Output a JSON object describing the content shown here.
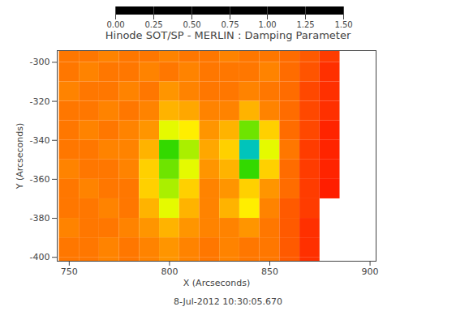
{
  "chart_data": {
    "type": "heatmap",
    "title": "Hinode SOT/SP - MERLIN : Damping Parameter",
    "x_label": "X (Arcseconds)",
    "y_label": "Y (Arcseconds)",
    "annotations": [
      "8-Jul-2012 10:30:05.670"
    ],
    "xlim": [
      744,
      903
    ],
    "ylim": [
      -402,
      -294
    ],
    "xticks": [
      750,
      800,
      850,
      900
    ],
    "yticks": [
      -300,
      -320,
      -340,
      -360,
      -380,
      -400
    ],
    "x_edges": [
      745,
      755,
      765,
      775,
      785,
      795,
      805,
      815,
      825,
      835,
      845,
      855,
      865,
      875,
      885,
      895,
      905
    ],
    "y_edges": [
      -290,
      -300,
      -310,
      -320,
      -330,
      -340,
      -350,
      -360,
      -370,
      -380,
      -390,
      -400,
      -410
    ],
    "values": [
      [
        0.2,
        0.2,
        0.22,
        0.2,
        0.2,
        0.22,
        0.2,
        0.2,
        0.22,
        0.2,
        0.2,
        0.18,
        0.15,
        0.1,
        null,
        null
      ],
      [
        0.2,
        0.22,
        0.2,
        0.2,
        0.22,
        0.2,
        0.22,
        0.2,
        0.2,
        0.2,
        0.22,
        0.18,
        0.14,
        0.08,
        null,
        null
      ],
      [
        0.22,
        0.2,
        0.2,
        0.22,
        0.2,
        0.25,
        0.22,
        0.2,
        0.2,
        0.22,
        0.2,
        0.18,
        0.12,
        0.08,
        null,
        null
      ],
      [
        0.2,
        0.2,
        0.22,
        0.2,
        0.22,
        0.3,
        0.28,
        0.22,
        0.22,
        0.3,
        0.22,
        0.18,
        0.12,
        0.08,
        null,
        null
      ],
      [
        0.2,
        0.22,
        0.2,
        0.22,
        0.25,
        0.45,
        0.4,
        0.25,
        0.3,
        0.55,
        0.35,
        0.18,
        0.12,
        0.06,
        null,
        null
      ],
      [
        0.2,
        0.2,
        0.22,
        0.22,
        0.3,
        0.6,
        0.5,
        0.28,
        0.35,
        0.8,
        0.45,
        0.2,
        0.1,
        0.06,
        null,
        null
      ],
      [
        0.22,
        0.2,
        0.2,
        0.22,
        0.35,
        0.55,
        0.45,
        0.25,
        0.3,
        0.6,
        0.35,
        0.18,
        0.1,
        0.06,
        null,
        null
      ],
      [
        0.2,
        0.22,
        0.2,
        0.2,
        0.35,
        0.5,
        0.35,
        0.22,
        0.25,
        0.35,
        0.25,
        0.18,
        0.1,
        0.05,
        null,
        null
      ],
      [
        0.2,
        0.2,
        0.22,
        0.2,
        0.3,
        0.45,
        0.3,
        0.22,
        0.3,
        0.4,
        0.22,
        0.15,
        0.1,
        null,
        null,
        null
      ],
      [
        0.22,
        0.2,
        0.2,
        0.22,
        0.25,
        0.3,
        0.25,
        0.22,
        0.22,
        0.25,
        0.2,
        0.15,
        0.08,
        null,
        null,
        null
      ],
      [
        0.2,
        0.2,
        0.22,
        0.2,
        0.22,
        0.25,
        0.22,
        0.2,
        0.22,
        0.2,
        0.2,
        0.15,
        0.08,
        null,
        null,
        null
      ],
      [
        0.2,
        0.2,
        0.22,
        0.2,
        0.22,
        0.25,
        0.22,
        0.2,
        0.22,
        0.2,
        0.2,
        0.15,
        0.08,
        null,
        null,
        null
      ]
    ],
    "colorbar": {
      "range": [
        0,
        1.5
      ],
      "ticks": [
        {
          "value": 0,
          "label": "0.00"
        },
        {
          "value": 0.25,
          "label": "0.25"
        },
        {
          "value": 0.5,
          "label": "0.50"
        },
        {
          "value": 0.75,
          "label": "0.75"
        },
        {
          "value": 1,
          "label": "1.00"
        },
        {
          "value": 1.25,
          "label": "1.25"
        },
        {
          "value": 1.5,
          "label": "1.50"
        }
      ]
    }
  }
}
